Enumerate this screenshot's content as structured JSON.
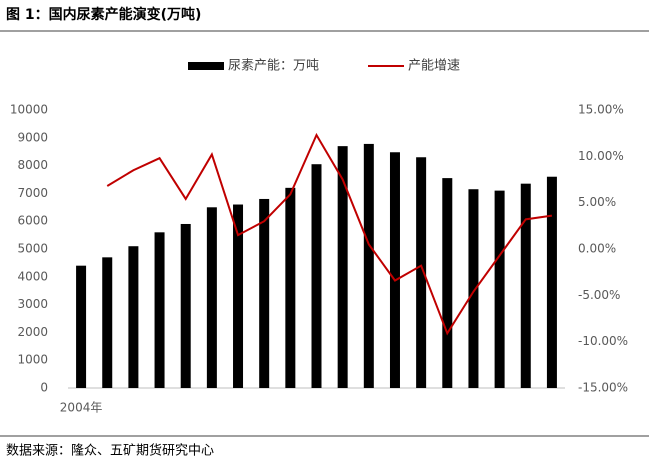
{
  "chart_data": {
    "type": "bar_line",
    "title": "图 1：国内尿素产能演变(万吨)",
    "source": "数据来源：隆众、五矿期货研究中心",
    "categories": [
      "2004年",
      null,
      null,
      null,
      null,
      null,
      null,
      null,
      null,
      null,
      null,
      null,
      null,
      null,
      null,
      null,
      null,
      null,
      null
    ],
    "series": [
      {
        "name": "尿素产能：万吨",
        "type": "bar",
        "color": "#000000",
        "values": [
          4400,
          4700,
          5100,
          5600,
          5900,
          6500,
          6600,
          6800,
          7200,
          8050,
          8700,
          8780,
          8480,
          8300,
          7550,
          7150,
          7100,
          7350,
          7600
        ]
      },
      {
        "name": "产能增速",
        "type": "line",
        "axis": "y2",
        "color": "#c00000",
        "values": [
          null,
          6.8,
          8.5,
          9.8,
          5.4,
          10.2,
          1.5,
          3.0,
          5.9,
          12.3,
          7.5,
          0.5,
          -3.4,
          -1.8,
          -9.1,
          -4.6,
          -0.7,
          3.2,
          3.6
        ]
      }
    ],
    "ylim": [
      0,
      10000
    ],
    "yticks": [
      0,
      1000,
      2000,
      3000,
      4000,
      5000,
      6000,
      7000,
      8000,
      9000,
      10000
    ],
    "y2lim": [
      -15,
      15
    ],
    "y2ticks": [
      {
        "value": -15,
        "label": "-15.00%"
      },
      {
        "value": -10,
        "label": "-10.00%"
      },
      {
        "value": -5,
        "label": "-5.00%"
      },
      {
        "value": 0,
        "label": "0.00%"
      },
      {
        "value": 5,
        "label": "5.00%"
      },
      {
        "value": 10,
        "label": "10.00%"
      },
      {
        "value": 15,
        "label": "15.00%"
      }
    ],
    "legend": "top"
  }
}
